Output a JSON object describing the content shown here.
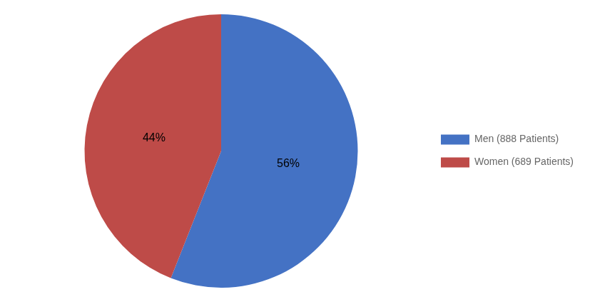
{
  "chart_data": {
    "type": "pie",
    "categories": [
      "Men (888 Patients)",
      "Women (689 Patients)"
    ],
    "values": [
      56,
      44
    ],
    "value_labels": [
      "56%",
      "44%"
    ],
    "data_labels": true,
    "colors": [
      "#4472C4",
      "#BE4B48"
    ],
    "legend": "right"
  }
}
